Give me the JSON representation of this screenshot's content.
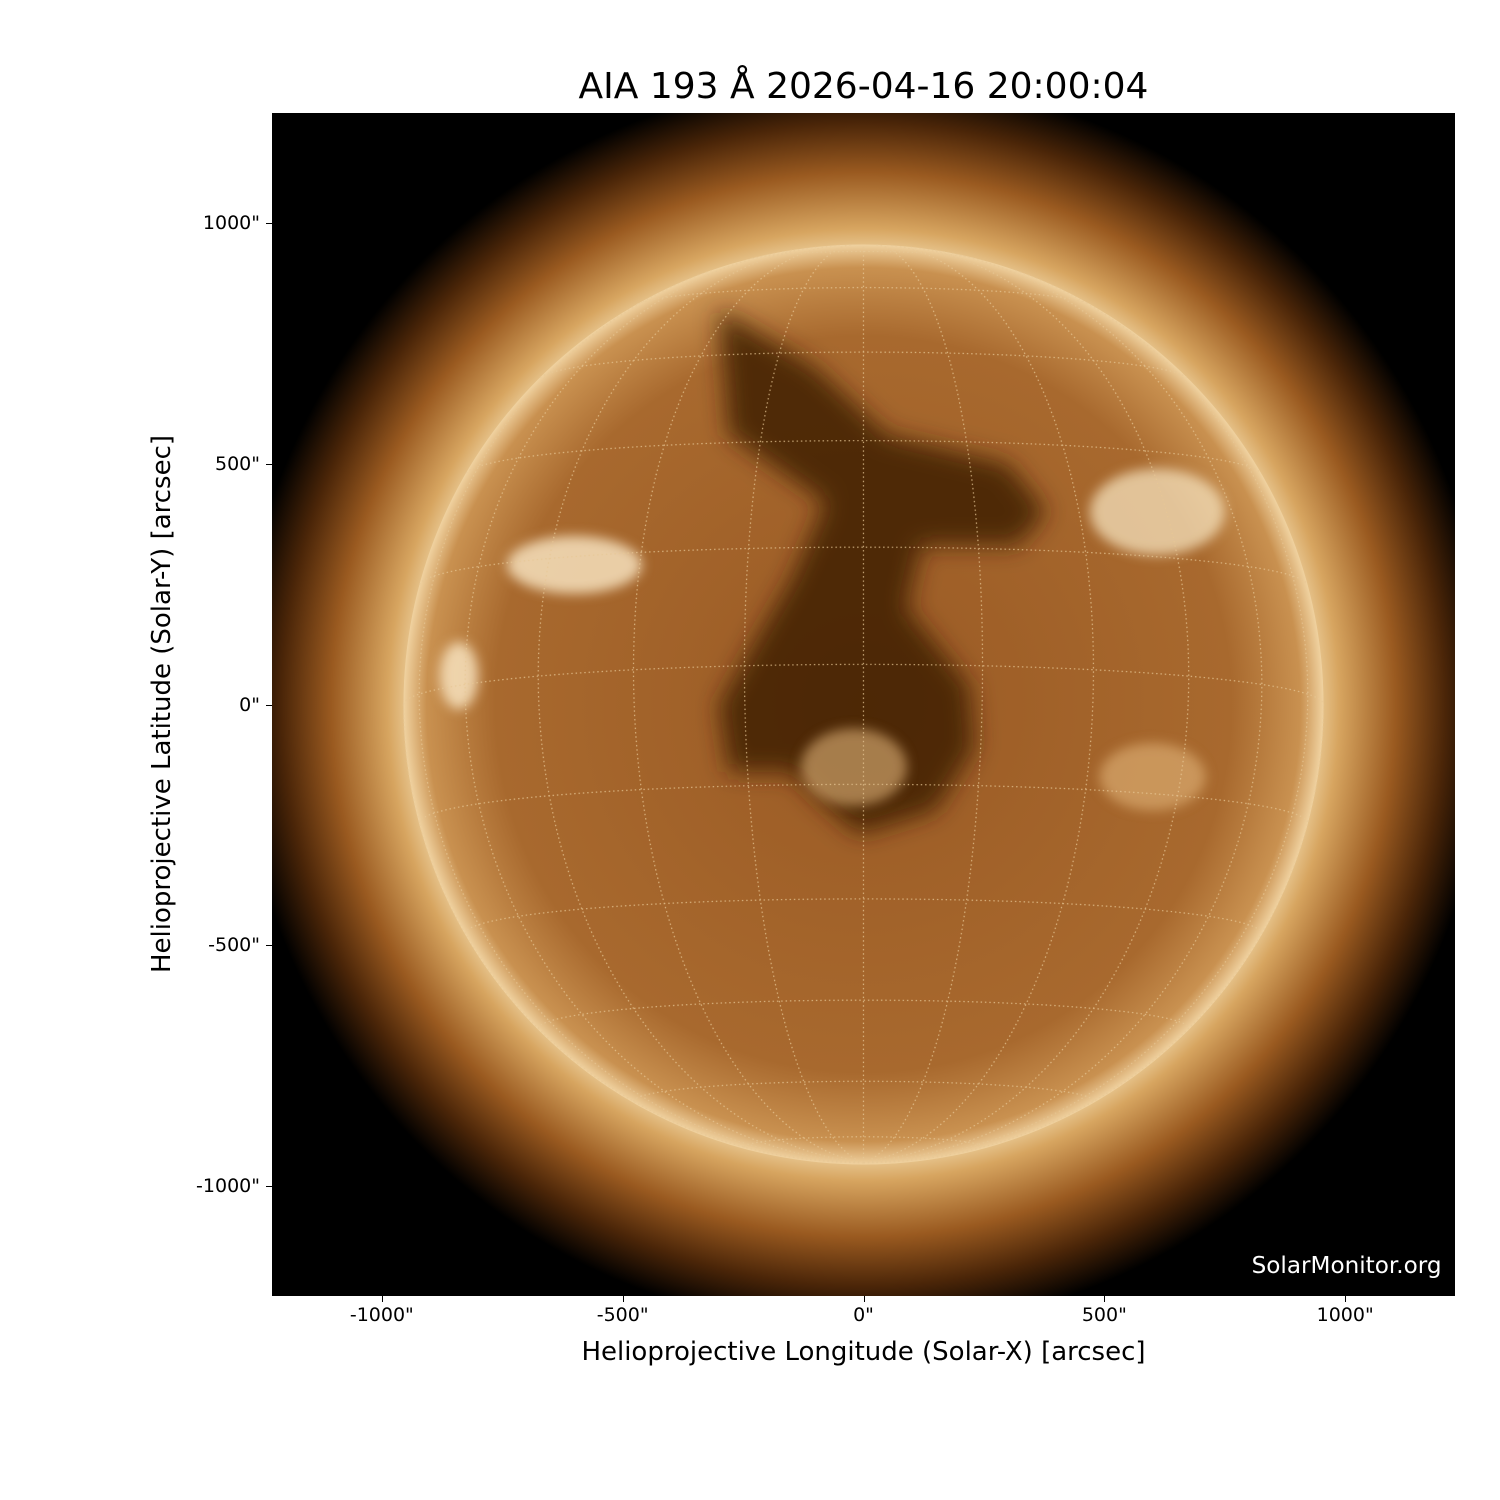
{
  "chart_data": {
    "type": "image",
    "title": "AIA 193 Å 2026-04-16 20:00:04",
    "xlabel": "Helioprojective Longitude (Solar-X) [arcsec]",
    "ylabel": "Helioprojective Latitude (Solar-Y) [arcsec]",
    "xlim": [
      -1228,
      1228
    ],
    "ylim": [
      -1228,
      1228
    ],
    "x_ticks": [
      -1000,
      -500,
      0,
      500,
      1000
    ],
    "x_tick_labels": [
      "-1000\"",
      "-500\"",
      "0\"",
      "500\"",
      "1000\""
    ],
    "y_ticks": [
      1000,
      500,
      0,
      -500,
      -1000
    ],
    "y_tick_labels": [
      "1000\"",
      "500\"",
      "0\"",
      "-500\"",
      "-1000\""
    ],
    "solar_radius_arcsec": 955,
    "grid": "heliographic lat/lon dotted, 15° spacing",
    "colormap": "sdoaia193",
    "colors": {
      "background": "#000000",
      "disk": "#a5662b",
      "limb": "#f3d9a8",
      "coronal_hole": "#3a1a06"
    },
    "watermark": "SolarMonitor.org"
  }
}
